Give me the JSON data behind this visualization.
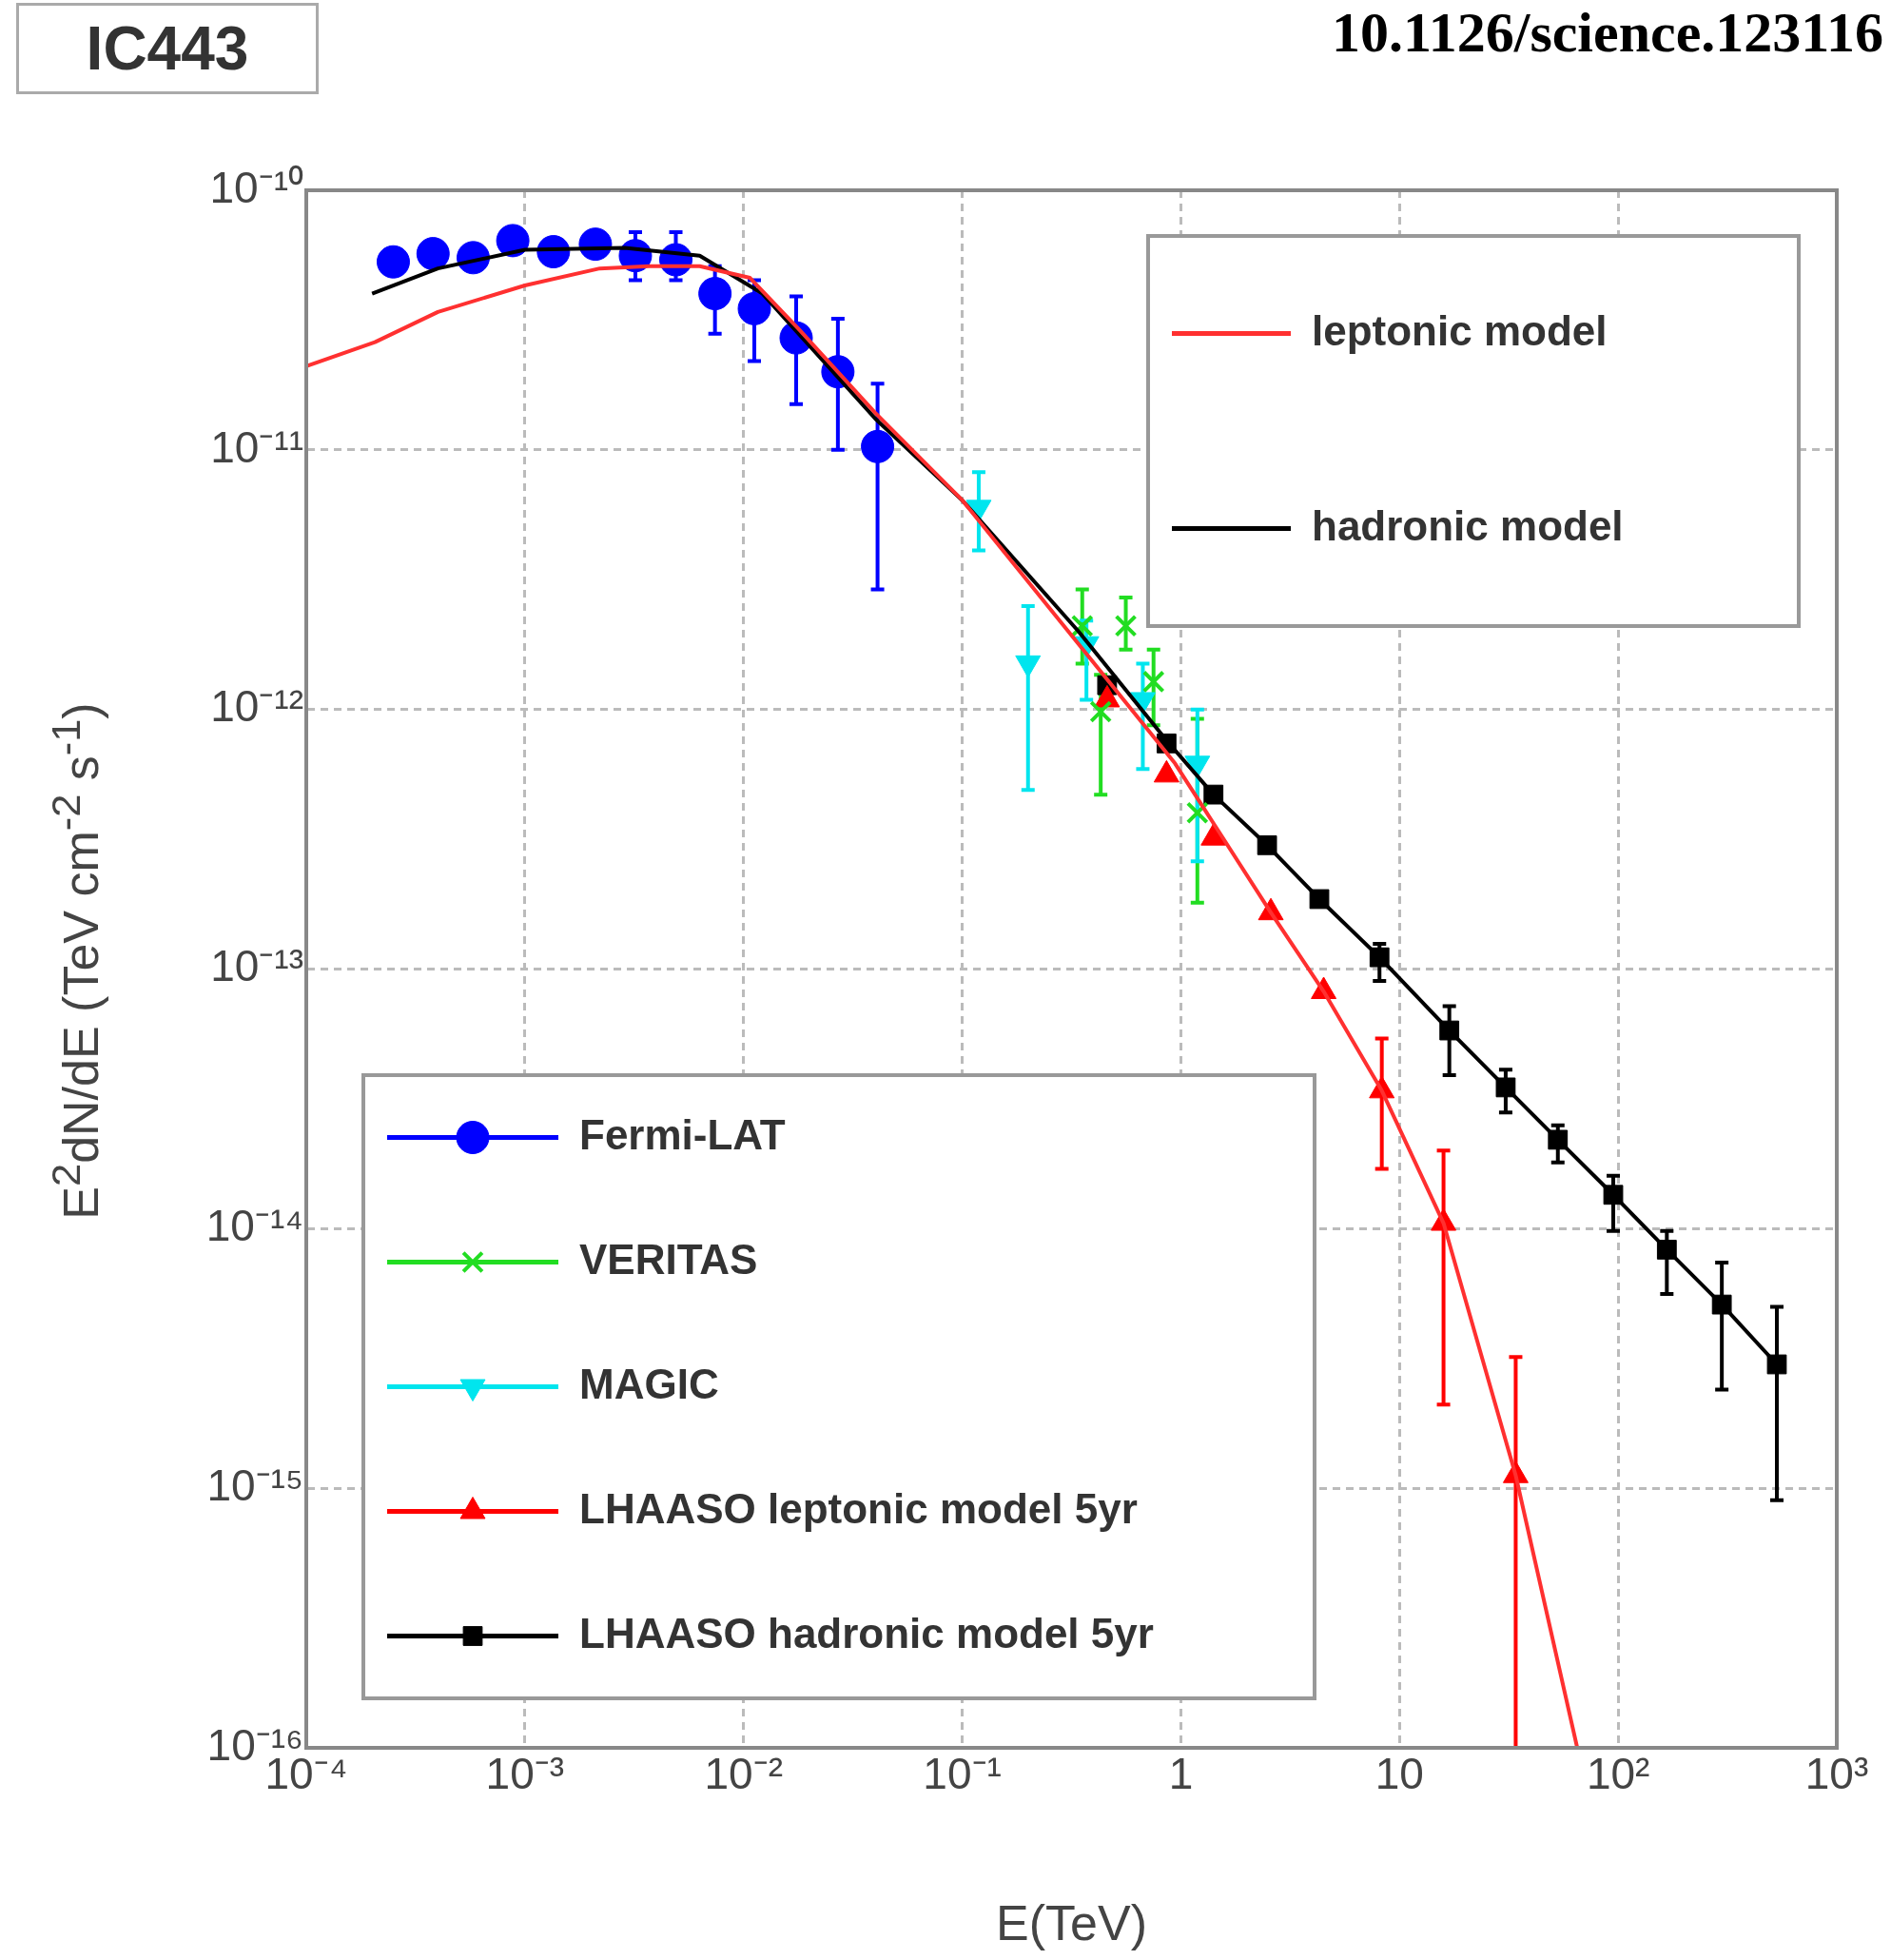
{
  "chart_data": {
    "type": "scatter",
    "title": "IC443",
    "annotations": [
      "10.1126/science.123116"
    ],
    "xlabel": "E(TeV)",
    "ylabel": "E$^{2}$dN/dE (TeV cm$^{-2}$ s$^{-1}$)",
    "log": "xy",
    "grid": true,
    "legend": "bottom left",
    "xlim": [
      0.0001,
      1000
    ],
    "ylim": [
      1e-16,
      1e-10
    ],
    "xticks": [
      {
        "value": 0.0001,
        "label": "10⁻⁴"
      },
      {
        "value": 0.001,
        "label": "10⁻³"
      },
      {
        "value": 0.01,
        "label": "10⁻²"
      },
      {
        "value": 0.1,
        "label": "10⁻¹"
      },
      1,
      10,
      {
        "value": 100,
        "label": "10²"
      },
      {
        "value": 1000,
        "label": "10³"
      }
    ],
    "yticks": [
      {
        "value": 1e-16,
        "label": "10⁻¹⁶"
      },
      {
        "value": 1e-15,
        "label": "10⁻¹⁵"
      },
      {
        "value": 1e-14,
        "label": "10⁻¹⁴"
      },
      {
        "value": 1e-13,
        "label": "10⁻¹³"
      },
      {
        "value": 1e-12,
        "label": "10⁻¹²"
      },
      {
        "value": 1e-11,
        "label": "10⁻¹¹"
      },
      {
        "value": 1e-10,
        "label": "10⁻¹⁰"
      }
    ],
    "series": [
      {
        "name": "leptonic model",
        "type": "line",
        "marker": "none",
        "color": "#ff3030",
        "x": [
          0.0001,
          0.000206,
          0.0004,
          0.001,
          0.0022,
          0.0037,
          0.0063,
          0.0107,
          0.018,
          0.04,
          0.1,
          0.34,
          0.94,
          2.58,
          4.5,
          8.3,
          15.9,
          34,
          65
        ],
        "values": [
          2.1e-11,
          2.6e-11,
          3.4e-11,
          4.3e-11,
          5e-11,
          5.1e-11,
          5.1e-11,
          4.6e-11,
          2.9e-11,
          1.39e-11,
          6.4e-12,
          1.79e-12,
          6.2e-13,
          1.65e-13,
          8.2e-14,
          3.4e-14,
          1.05e-14,
          1.12e-15,
          1e-16
        ]
      },
      {
        "name": "hadronic model",
        "type": "line",
        "marker": "none",
        "color": "#000000",
        "x": [
          0.0002,
          0.0004,
          0.001,
          0.00286,
          0.0063,
          0.0122,
          0.04,
          0.1,
          0.34,
          0.86,
          1.41,
          2.48,
          4.3,
          8.1,
          16.9,
          30.6,
          53,
          95,
          167,
          298,
          532
        ],
        "values": [
          4e-11,
          5e-11,
          5.9e-11,
          6e-11,
          5.6e-11,
          4e-11,
          1.32e-11,
          6.4e-12,
          2e-12,
          7.6e-13,
          4.7e-13,
          3e-13,
          1.86e-13,
          1.11e-13,
          5.8e-14,
          3.5e-14,
          2.2e-14,
          1.35e-14,
          8.3e-15,
          5.1e-15,
          3e-15
        ]
      },
      {
        "name": "Fermi-LAT",
        "type": "scatter",
        "marker": "circle",
        "color": "#0000ff",
        "x": [
          0.00025,
          0.00038,
          0.00058,
          0.00088,
          0.00135,
          0.0021,
          0.0032,
          0.0049,
          0.0074,
          0.0112,
          0.0174,
          0.027,
          0.041
        ],
        "values": [
          5.3e-11,
          5.7e-11,
          5.5e-11,
          6.4e-11,
          5.8e-11,
          6.2e-11,
          5.6e-11,
          5.4e-11,
          4e-11,
          3.5e-11,
          2.7e-11,
          2e-11,
          1.03e-11
        ],
        "errors": [
          null,
          null,
          null,
          null,
          null,
          null,
          [
            4.5e-11,
            6.9e-11
          ],
          [
            4.5e-11,
            6.9e-11
          ],
          [
            2.8e-11,
            5.1e-11
          ],
          [
            2.2e-11,
            4.5e-11
          ],
          [
            1.5e-11,
            3.9e-11
          ],
          [
            1e-11,
            3.2e-11
          ],
          [
            2.9e-12,
            1.8e-11
          ]
        ]
      },
      {
        "name": "VERITAS",
        "type": "scatter",
        "marker": "cross",
        "color": "#22dd22",
        "x": [
          0.354,
          0.56,
          0.75,
          0.43,
          1.19
        ],
        "values": [
          2.1e-12,
          2.1e-12,
          1.28e-12,
          9.8e-13,
          4e-13
        ],
        "errors": [
          [
            1.5e-12,
            2.9e-12
          ],
          [
            1.7e-12,
            2.7e-12
          ],
          [
            8.7e-13,
            1.7e-12
          ],
          [
            4.7e-13,
            1.36e-12
          ],
          [
            1.8e-13,
            9.2e-13
          ]
        ]
      },
      {
        "name": "MAGIC",
        "type": "scatter",
        "marker": "triangle_down",
        "color": "#00e5ee",
        "x": [
          0.119,
          0.2,
          0.37,
          0.67,
          1.19
        ],
        "values": [
          6e-12,
          1.51e-12,
          1.79e-12,
          1.09e-12,
          6.2e-13
        ],
        "errors": [
          [
            4.1e-12,
            8.2e-12
          ],
          [
            4.9e-13,
            2.5e-12
          ],
          [
            1.09e-12,
            2.2e-12
          ],
          [
            5.9e-13,
            1.5e-12
          ],
          [
            2.6e-13,
            1e-12
          ]
        ]
      },
      {
        "name": "LHAASO leptonic model 5yr",
        "type": "scatter",
        "marker": "triangle",
        "color": "#ff0000",
        "x": [
          0.46,
          0.86,
          1.41,
          2.58,
          4.5,
          8.3,
          15.9,
          34
        ],
        "values": [
          1.09e-12,
          5.6e-13,
          3.2e-13,
          1.65e-13,
          8.2e-14,
          3.4e-14,
          1.05e-14,
          1.12e-15
        ],
        "errors": [
          null,
          null,
          null,
          null,
          null,
          [
            1.7e-14,
            5.4e-14
          ],
          [
            2.1e-15,
            2e-14
          ],
          [
            1e-16,
            3.2e-15
          ]
        ]
      },
      {
        "name": "LHAASO hadronic model 5yr",
        "type": "scatter",
        "marker": "square",
        "color": "#000000",
        "x": [
          0.46,
          0.86,
          1.41,
          2.48,
          4.3,
          8.1,
          16.9,
          30.6,
          53,
          95,
          167,
          298,
          532
        ],
        "values": [
          1.24e-12,
          7.4e-13,
          4.7e-13,
          3e-13,
          1.86e-13,
          1.11e-13,
          5.8e-14,
          3.5e-14,
          2.2e-14,
          1.35e-14,
          8.3e-15,
          5.1e-15,
          3e-15
        ],
        "errors": [
          null,
          null,
          null,
          null,
          null,
          [
            9e-14,
            1.25e-13
          ],
          [
            3.9e-14,
            7.2e-14
          ],
          [
            2.8e-14,
            4.1e-14
          ],
          [
            1.8e-14,
            2.5e-14
          ],
          [
            9.8e-15,
            1.6e-14
          ],
          [
            5.6e-15,
            9.8e-15
          ],
          [
            2.4e-15,
            7.4e-15
          ],
          [
            9e-16,
            5e-15
          ]
        ]
      }
    ]
  }
}
